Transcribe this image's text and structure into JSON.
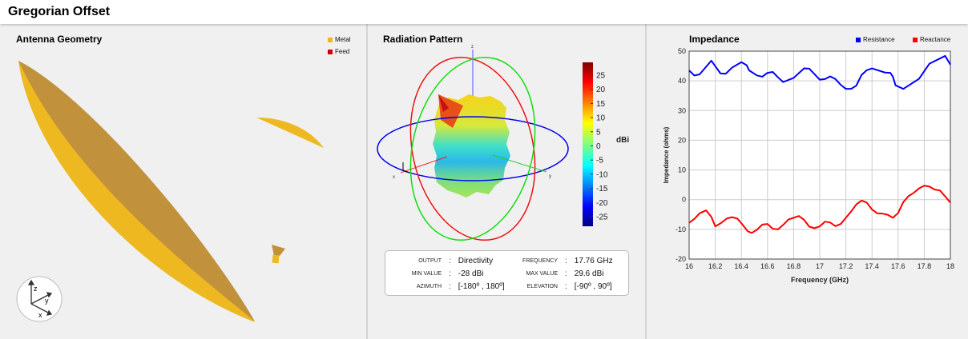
{
  "header": {
    "title": "Gregorian Offset"
  },
  "geometry": {
    "title": "Antenna Geometry",
    "legend": [
      {
        "label": "Metal",
        "color": "#edb820"
      },
      {
        "label": "Feed",
        "color": "#d40000"
      }
    ],
    "axes": [
      "x",
      "y",
      "z"
    ]
  },
  "pattern": {
    "title": "Radiation Pattern",
    "axis_labels": {
      "x": "x",
      "y": "y",
      "z": "z"
    },
    "colorbar": {
      "unit": "dBi",
      "ticks": [
        "25",
        "20",
        "15",
        "10",
        "5",
        "0",
        "-5",
        "-10",
        "-15",
        "-20",
        "-25"
      ],
      "min": -28,
      "max": 29.6
    },
    "info": {
      "output_label": "OUTPUT",
      "output": "Directivity",
      "frequency_label": "FREQUENCY",
      "frequency": "17.76 GHz",
      "min_label": "MIN VALUE",
      "min": "-28 dBi",
      "max_label": "MAX VALUE",
      "max": "29.6 dBi",
      "azimuth_label": "AZIMUTH",
      "azimuth": "[-180º , 180º]",
      "elevation_label": "ELEVATION",
      "elevation": "[-90º , 90º]"
    }
  },
  "impedance": {
    "title": "Impedance"
  },
  "chart_data": {
    "type": "line",
    "title": "Impedance",
    "xlabel": "Frequency (GHz)",
    "ylabel": "Impedance (ohms)",
    "xlim": [
      16,
      18
    ],
    "ylim": [
      -20,
      50
    ],
    "xticks": [
      "16",
      "16.2",
      "16.4",
      "16.6",
      "16.8",
      "17",
      "17.2",
      "17.4",
      "17.6",
      "17.8",
      "18"
    ],
    "yticks": [
      "50",
      "40",
      "30",
      "20",
      "10",
      "0",
      "-10",
      "-20"
    ],
    "grid": true,
    "legend": "top-right",
    "series": [
      {
        "name": "Resistance",
        "color": "#0000ff",
        "x": [
          16,
          16.04,
          16.08,
          16.17,
          16.24,
          16.28,
          16.33,
          16.4,
          16.44,
          16.46,
          16.52,
          16.56,
          16.6,
          16.64,
          16.68,
          16.72,
          16.8,
          16.88,
          16.92,
          17,
          17.04,
          17.08,
          17.12,
          17.16,
          17.2,
          17.24,
          17.28,
          17.32,
          17.36,
          17.4,
          17.5,
          17.54,
          17.56,
          17.58,
          17.64,
          17.76,
          17.84,
          17.96,
          18
        ],
        "values": [
          43.5,
          41.8,
          42.2,
          46.8,
          42.5,
          42.4,
          44.5,
          46.3,
          45.3,
          43.5,
          41.8,
          41.4,
          42.7,
          43,
          41.2,
          39.6,
          41,
          44.2,
          44.1,
          40.4,
          40.6,
          41.5,
          40.6,
          38.7,
          37.3,
          37.3,
          38.4,
          42,
          43.6,
          44.2,
          42.8,
          42.7,
          41.4,
          38.5,
          37.3,
          40.7,
          45.8,
          48.4,
          45.5
        ]
      },
      {
        "name": "Reactance",
        "color": "#ff0000",
        "x": [
          16,
          16.04,
          16.08,
          16.13,
          16.17,
          16.2,
          16.24,
          16.29,
          16.33,
          16.37,
          16.41,
          16.45,
          16.48,
          16.52,
          16.56,
          16.6,
          16.64,
          16.68,
          16.72,
          16.76,
          16.8,
          16.84,
          16.88,
          16.92,
          16.96,
          17,
          17.04,
          17.08,
          17.12,
          17.16,
          17.2,
          17.24,
          17.28,
          17.32,
          17.36,
          17.4,
          17.44,
          17.48,
          17.52,
          17.56,
          17.6,
          17.64,
          17.68,
          17.72,
          17.76,
          17.8,
          17.84,
          17.88,
          17.92,
          17.96,
          18
        ],
        "values": [
          -7.8,
          -6.5,
          -4.6,
          -3.6,
          -5.8,
          -9,
          -8,
          -6.3,
          -5.9,
          -6.4,
          -8.5,
          -10.7,
          -11.2,
          -10.1,
          -8.4,
          -8.2,
          -9.8,
          -10,
          -8.5,
          -6.7,
          -6.1,
          -5.5,
          -6.8,
          -9.1,
          -9.6,
          -9,
          -7.4,
          -7.7,
          -8.9,
          -8.2,
          -6.1,
          -4,
          -1.6,
          -0.3,
          -1,
          -3.3,
          -4.6,
          -4.7,
          -5.1,
          -6.1,
          -4.5,
          -0.8,
          1.2,
          2.3,
          3.8,
          4.7,
          4.4,
          3.4,
          3.1,
          1.1,
          -1
        ]
      }
    ]
  }
}
